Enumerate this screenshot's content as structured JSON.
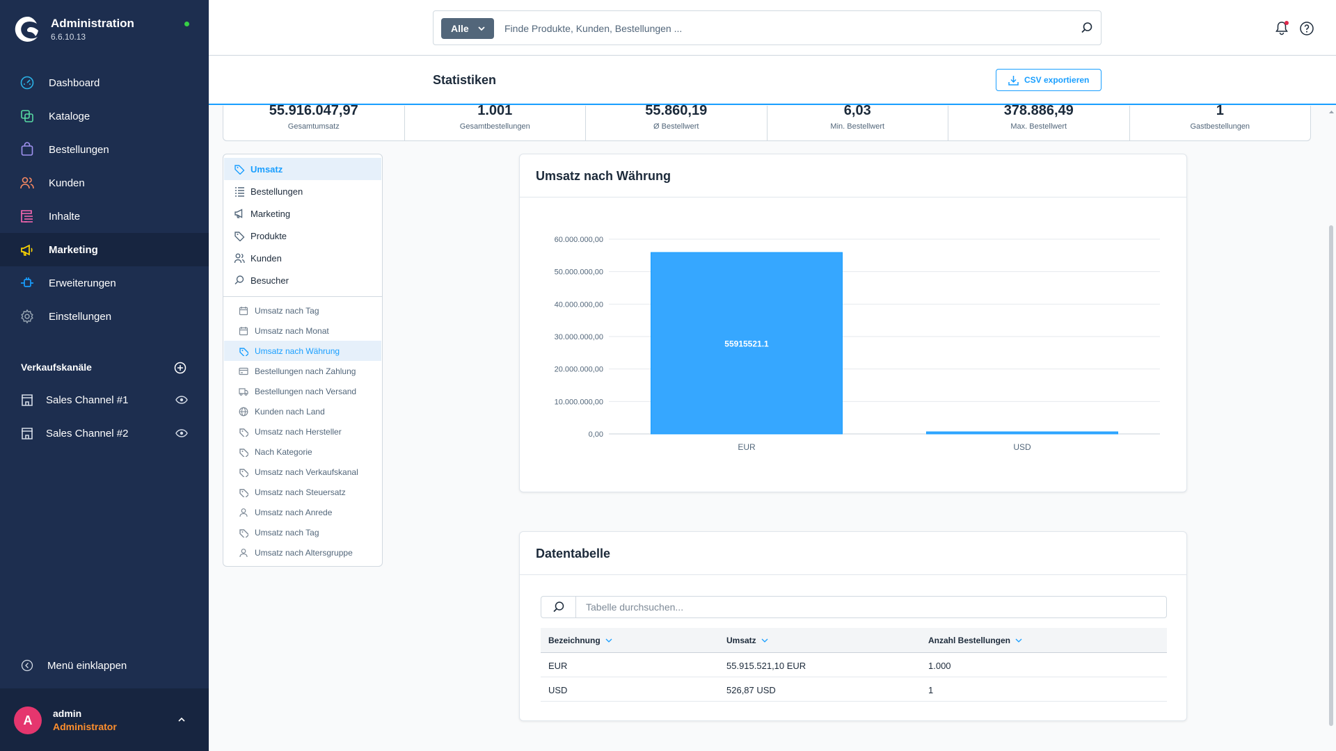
{
  "app": {
    "title": "Administration",
    "version": "6.6.10.13"
  },
  "nav": [
    {
      "label": "Dashboard",
      "icon": "dashboard-icon",
      "color": "#2bb3e8"
    },
    {
      "label": "Kataloge",
      "icon": "catalog-icon",
      "color": "#57d9a3"
    },
    {
      "label": "Bestellungen",
      "icon": "orders-icon",
      "color": "#a092f0"
    },
    {
      "label": "Kunden",
      "icon": "customers-icon",
      "color": "#f88962"
    },
    {
      "label": "Inhalte",
      "icon": "content-icon",
      "color": "#ff68b4"
    },
    {
      "label": "Marketing",
      "icon": "marketing-icon",
      "color": "#ffd700",
      "active": true
    },
    {
      "label": "Erweiterungen",
      "icon": "extensions-icon",
      "color": "#189eff"
    },
    {
      "label": "Einstellungen",
      "icon": "settings-icon",
      "color": "#9aa8b5"
    }
  ],
  "sales_channels": {
    "title": "Verkaufskanäle",
    "items": [
      "Sales Channel #1",
      "Sales Channel #2"
    ]
  },
  "collapse_label": "Menü einklappen",
  "user": {
    "initial": "A",
    "name": "admin",
    "role": "Administrator"
  },
  "search": {
    "type": "Alle",
    "placeholder": "Finde Produkte, Kunden, Bestellungen ..."
  },
  "page": {
    "title": "Statistiken",
    "export_label": "CSV exportieren"
  },
  "kpis": [
    {
      "value": "55.916.047,97",
      "label": "Gesamtumsatz"
    },
    {
      "value": "1.001",
      "label": "Gesamtbestellungen"
    },
    {
      "value": "55.860,19",
      "label": "Ø Bestellwert"
    },
    {
      "value": "6,03",
      "label": "Min. Bestellwert"
    },
    {
      "value": "378.886,49",
      "label": "Max. Bestellwert"
    },
    {
      "value": "1",
      "label": "Gastbestellungen"
    }
  ],
  "stats_nav": {
    "main": [
      {
        "label": "Umsatz",
        "icon": "tag-icon",
        "active": true
      },
      {
        "label": "Bestellungen",
        "icon": "list-icon"
      },
      {
        "label": "Marketing",
        "icon": "megaphone-icon"
      },
      {
        "label": "Produkte",
        "icon": "tag-icon"
      },
      {
        "label": "Kunden",
        "icon": "users-icon"
      },
      {
        "label": "Besucher",
        "icon": "search-icon"
      }
    ],
    "sub": [
      {
        "label": "Umsatz nach Tag",
        "icon": "calendar-icon"
      },
      {
        "label": "Umsatz nach Monat",
        "icon": "calendar-icon"
      },
      {
        "label": "Umsatz nach Währung",
        "icon": "tag-icon",
        "active": true
      },
      {
        "label": "Bestellungen nach Zahlung",
        "icon": "credit-card-icon"
      },
      {
        "label": "Bestellungen nach Versand",
        "icon": "truck-icon"
      },
      {
        "label": "Kunden nach Land",
        "icon": "globe-icon"
      },
      {
        "label": "Umsatz nach Hersteller",
        "icon": "tag-icon"
      },
      {
        "label": "Nach Kategorie",
        "icon": "tag-icon"
      },
      {
        "label": "Umsatz nach Verkaufskanal",
        "icon": "tag-icon"
      },
      {
        "label": "Umsatz nach Steuersatz",
        "icon": "tag-icon"
      },
      {
        "label": "Umsatz nach Anrede",
        "icon": "user-icon"
      },
      {
        "label": "Umsatz nach Tag",
        "icon": "tag-icon"
      },
      {
        "label": "Umsatz nach Altersgruppe",
        "icon": "user-icon"
      }
    ]
  },
  "chart_card": {
    "title": "Umsatz nach Währung"
  },
  "chart_data": {
    "type": "bar",
    "title": "",
    "categories": [
      "EUR",
      "USD"
    ],
    "values": [
      55915521.1,
      526.87
    ],
    "data_labels": [
      "55915521.1",
      ""
    ],
    "ylim": [
      0,
      60000000
    ],
    "yticks": [
      "0,00",
      "10.000.000,00",
      "20.000.000,00",
      "30.000.000,00",
      "40.000.000,00",
      "50.000.000,00",
      "60.000.000,00"
    ],
    "color": "#36a7ff",
    "grid": true
  },
  "table_card": {
    "title": "Datentabelle",
    "search_placeholder": "Tabelle durchsuchen...",
    "columns": [
      "Bezeichnung",
      "Umsatz",
      "Anzahl Bestellungen"
    ],
    "rows": [
      [
        "EUR",
        "55.915.521,10 EUR",
        "1.000"
      ],
      [
        "USD",
        "526,87 USD",
        "1"
      ]
    ]
  },
  "colors": {
    "sidebar": "#1d2e4f",
    "accent": "#189eff",
    "avatar": "#e5366e",
    "role": "#ff8f2d"
  }
}
